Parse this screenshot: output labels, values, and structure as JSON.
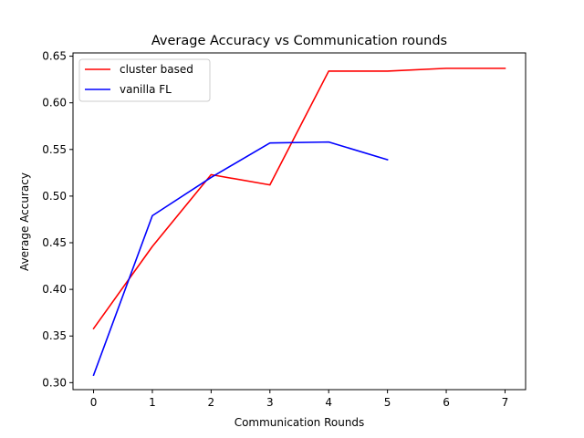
{
  "chart_data": {
    "type": "line",
    "title": "Average Accuracy vs Communication rounds",
    "xlabel": "Communication Rounds",
    "ylabel": "Average Accuracy",
    "xlim": [
      -0.35,
      7.35
    ],
    "ylim": [
      0.2925,
      0.6535
    ],
    "x_ticks": [
      0,
      1,
      2,
      3,
      4,
      5,
      6,
      7
    ],
    "x_tick_labels": [
      "0",
      "1",
      "2",
      "3",
      "4",
      "5",
      "6",
      "7"
    ],
    "y_ticks": [
      0.3,
      0.35,
      0.4,
      0.45,
      0.5,
      0.55,
      0.6,
      0.65
    ],
    "y_tick_labels": [
      "0.30",
      "0.35",
      "0.40",
      "0.45",
      "0.50",
      "0.55",
      "0.60",
      "0.65"
    ],
    "grid": false,
    "legend_position": "top-left",
    "series": [
      {
        "name": "cluster based",
        "color": "#ff0000",
        "x": [
          0,
          1,
          2,
          3,
          4,
          5,
          6,
          7
        ],
        "y": [
          0.358,
          0.446,
          0.523,
          0.512,
          0.634,
          0.634,
          0.637,
          0.637
        ]
      },
      {
        "name": "vanilla FL",
        "color": "#0000ff",
        "x": [
          0,
          1,
          2,
          3,
          4,
          5
        ],
        "y": [
          0.308,
          0.479,
          0.52,
          0.557,
          0.558,
          0.539
        ]
      }
    ]
  }
}
